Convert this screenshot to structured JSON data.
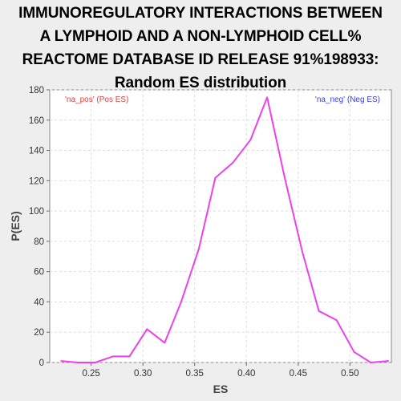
{
  "chart_data": {
    "type": "line",
    "title_lines": [
      "IMMUNOREGULATORY INTERACTIONS BETWEEN",
      "A LYMPHOID AND A NON-LYMPHOID CELL%",
      "REACTOME DATABASE ID RELEASE 91%198933:",
      "Random ES distribution"
    ],
    "xlabel": "ES",
    "ylabel": "P(ES)",
    "xlim": [
      0.21,
      0.54
    ],
    "ylim": [
      0,
      180
    ],
    "xticks": [
      "0.25",
      "0.30",
      "0.35",
      "0.40",
      "0.45",
      "0.50"
    ],
    "yticks": [
      "0",
      "20",
      "40",
      "60",
      "80",
      "100",
      "120",
      "140",
      "160",
      "180"
    ],
    "grid": true,
    "annotations": [
      {
        "text": "'na_pos' (Pos ES)",
        "color": "#e83b3b",
        "position": "top-left"
      },
      {
        "text": "'na_neg' (Neg ES)",
        "color": "#3b3be8",
        "position": "top-right"
      }
    ],
    "series": [
      {
        "color": "#ee40ee",
        "x": [
          0.221,
          0.237,
          0.254,
          0.271,
          0.287,
          0.304,
          0.321,
          0.337,
          0.354,
          0.37,
          0.387,
          0.404,
          0.42,
          0.437,
          0.454,
          0.47,
          0.487,
          0.504,
          0.52,
          0.537
        ],
        "y": [
          1,
          0,
          0,
          4,
          4,
          22,
          13,
          40,
          75,
          122,
          132,
          147,
          175,
          122,
          73,
          34,
          28,
          7,
          0,
          1
        ]
      }
    ]
  }
}
